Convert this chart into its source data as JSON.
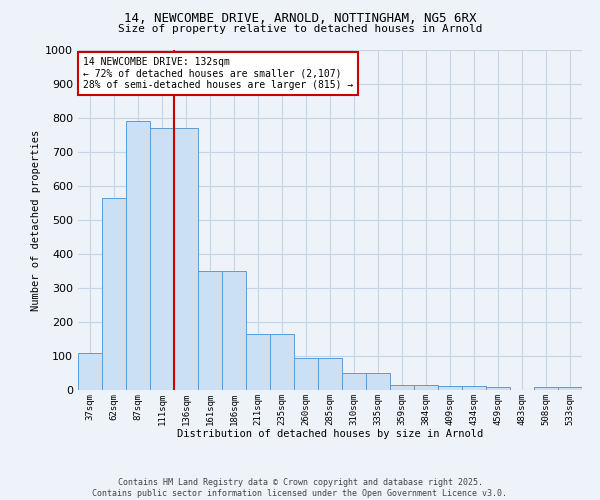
{
  "title_line1": "14, NEWCOMBE DRIVE, ARNOLD, NOTTINGHAM, NG5 6RX",
  "title_line2": "Size of property relative to detached houses in Arnold",
  "xlabel": "Distribution of detached houses by size in Arnold",
  "ylabel": "Number of detached properties",
  "categories": [
    "37sqm",
    "62sqm",
    "87sqm",
    "111sqm",
    "136sqm",
    "161sqm",
    "186sqm",
    "211sqm",
    "235sqm",
    "260sqm",
    "285sqm",
    "310sqm",
    "335sqm",
    "359sqm",
    "384sqm",
    "409sqm",
    "434sqm",
    "459sqm",
    "483sqm",
    "508sqm",
    "533sqm"
  ],
  "values": [
    110,
    565,
    790,
    770,
    770,
    350,
    350,
    165,
    165,
    95,
    95,
    50,
    50,
    15,
    15,
    12,
    12,
    8,
    0,
    8,
    8
  ],
  "bar_color": "#cce0f5",
  "bar_edge_color": "#5b9bd5",
  "red_line_index": 4,
  "red_line_color": "#cc0000",
  "annotation_line1": "14 NEWCOMBE DRIVE: 132sqm",
  "annotation_line2": "← 72% of detached houses are smaller (2,107)",
  "annotation_line3": "28% of semi-detached houses are larger (815) →",
  "annotation_box_color": "#ffffff",
  "annotation_box_edge": "#cc0000",
  "ylim": [
    0,
    1000
  ],
  "yticks": [
    0,
    100,
    200,
    300,
    400,
    500,
    600,
    700,
    800,
    900,
    1000
  ],
  "footer_line1": "Contains HM Land Registry data © Crown copyright and database right 2025.",
  "footer_line2": "Contains public sector information licensed under the Open Government Licence v3.0.",
  "bg_color": "#eef2f9",
  "grid_color": "#c5d5e8"
}
